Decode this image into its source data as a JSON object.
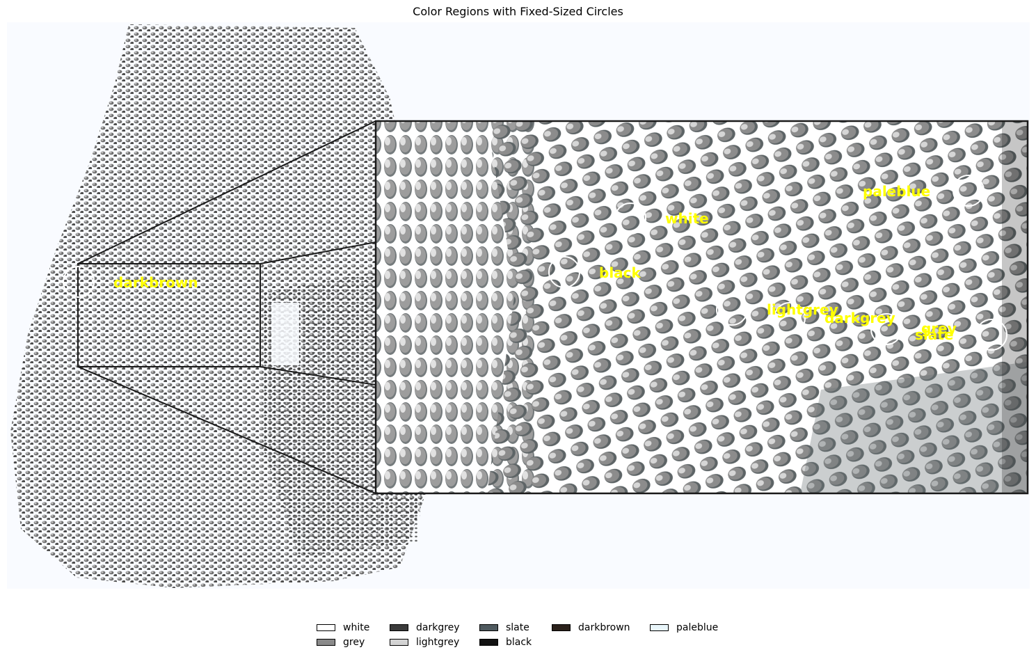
{
  "title": "Color Regions with Fixed-Sized Circles",
  "labels": [
    {
      "key": "darkbrown",
      "text": "darkbrown"
    },
    {
      "key": "white",
      "text": "white"
    },
    {
      "key": "black",
      "text": "black"
    },
    {
      "key": "paleblue",
      "text": "paleblue"
    },
    {
      "key": "lightgrey",
      "text": "lightgrey"
    },
    {
      "key": "darkgrey",
      "text": "darkgrey"
    },
    {
      "key": "grey",
      "text": "grey"
    },
    {
      "key": "slate",
      "text": "slate"
    }
  ],
  "legend": [
    {
      "label": "white",
      "color": "#ffffff"
    },
    {
      "label": "grey",
      "color": "#8a8a8a"
    },
    {
      "label": "darkgrey",
      "color": "#3b3b3b"
    },
    {
      "label": "lightgrey",
      "color": "#d3d3d3"
    },
    {
      "label": "slate",
      "color": "#4f5a5f"
    },
    {
      "label": "black",
      "color": "#121212"
    },
    {
      "label": "darkbrown",
      "color": "#2b211b"
    },
    {
      "label": "paleblue",
      "color": "#e9f6fb"
    }
  ]
}
